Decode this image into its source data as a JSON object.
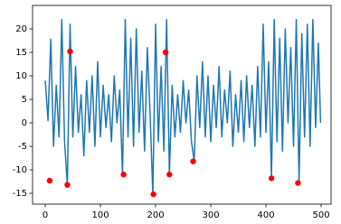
{
  "chart_data": [
    {
      "type": "line",
      "x": [
        0,
        5,
        10,
        15,
        20,
        25,
        30,
        35,
        40,
        45,
        50,
        55,
        60,
        65,
        70,
        75,
        80,
        85,
        90,
        95,
        100,
        105,
        110,
        115,
        120,
        125,
        130,
        135,
        140,
        145,
        150,
        155,
        160,
        165,
        170,
        175,
        180,
        185,
        190,
        195,
        200,
        205,
        210,
        215,
        220,
        225,
        230,
        235,
        240,
        245,
        250,
        255,
        260,
        265,
        270,
        275,
        280,
        285,
        290,
        295,
        300,
        305,
        310,
        315,
        320,
        325,
        330,
        335,
        340,
        345,
        350,
        355,
        360,
        365,
        370,
        375,
        380,
        385,
        390,
        395,
        400,
        405,
        410,
        415,
        420,
        425,
        430,
        435,
        440,
        445,
        450,
        455,
        460,
        465,
        470,
        475,
        480,
        485,
        490,
        495,
        499
      ],
      "series": [
        {
          "color": "#1f77b4",
          "values": [
            9,
            0.5,
            17.8,
            -5,
            8,
            -3,
            22,
            -4,
            -13.2,
            21,
            -3,
            12,
            -2,
            6,
            -7,
            9,
            -2,
            10,
            -5,
            13,
            -3,
            8,
            -1,
            6,
            -4,
            10,
            0,
            7,
            -11,
            22,
            -3,
            18,
            -5,
            20,
            -2,
            11,
            -6,
            16,
            2,
            -15.2,
            21,
            -4,
            12,
            -6,
            22,
            -11,
            8,
            -3,
            6,
            -2,
            9,
            0,
            7,
            -4,
            -8.2,
            10,
            -1,
            13,
            -3,
            10,
            -4,
            8,
            -1,
            12,
            -3,
            7,
            0,
            11,
            -5,
            6,
            -2,
            9,
            -4,
            10,
            -1,
            8,
            -5,
            12,
            -3,
            21,
            -2,
            13,
            -11.8,
            22,
            -4,
            18,
            -6,
            20,
            0,
            16,
            -5,
            22,
            -12.8,
            19,
            -3,
            21,
            -5,
            22,
            -1,
            17,
            0
          ]
        }
      ],
      "xlim": [
        -23,
        518
      ],
      "ylim": [
        -17.3,
        25
      ],
      "xticks": [
        0,
        100,
        200,
        300,
        400,
        500
      ],
      "yticks": [
        -15,
        -10,
        -5,
        0,
        5,
        10,
        15,
        20
      ]
    },
    {
      "type": "scatter",
      "color": "#ff0000",
      "x": [
        8,
        40,
        45,
        142,
        196,
        218,
        225,
        268,
        410,
        458
      ],
      "values": [
        -12.3,
        -13.2,
        15.2,
        -11,
        -15.2,
        15,
        -11,
        -8.2,
        -11.8,
        -12.8
      ]
    }
  ]
}
